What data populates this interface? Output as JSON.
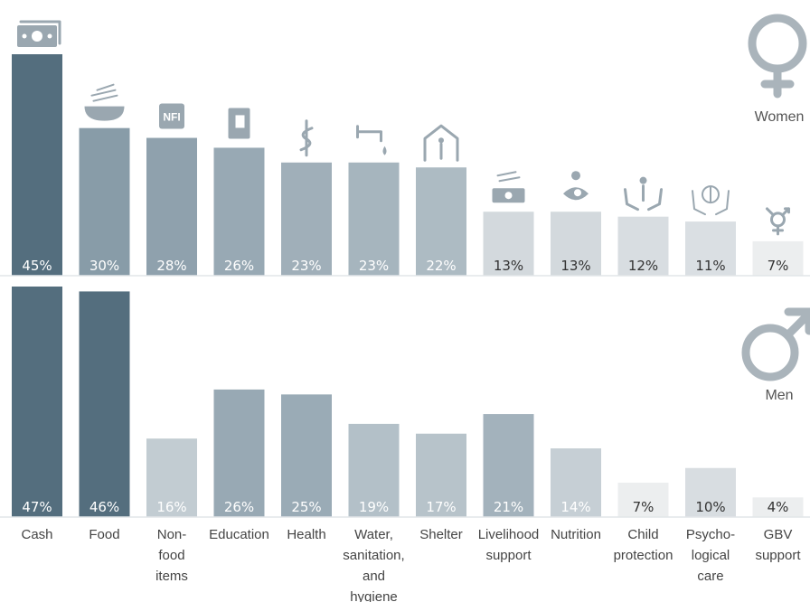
{
  "chart_data": [
    {
      "type": "bar",
      "panel": "women",
      "title": "",
      "label": "Women",
      "categories": [
        "Cash",
        "Food",
        "Non-food items",
        "Education",
        "Health",
        "Water, sanitation, and hygiene",
        "Shelter",
        "Livelihood support",
        "Nutrition",
        "Child protection",
        "Psycho-logical care",
        "GBV support"
      ],
      "values": [
        45,
        30,
        28,
        26,
        23,
        23,
        22,
        13,
        13,
        12,
        11,
        7
      ],
      "value_labels": [
        "45%",
        "30%",
        "28%",
        "26%",
        "23%",
        "23%",
        "22%",
        "13%",
        "13%",
        "12%",
        "11%",
        "7%"
      ],
      "ylim": [
        0,
        45
      ],
      "grid": false,
      "icons": [
        "cash-icon",
        "food-icon",
        "nfi-icon",
        "education-icon",
        "health-icon",
        "water-tap-icon",
        "shelter-icon",
        "livelihood-icon",
        "nutrition-icon",
        "child-protection-icon",
        "psychological-care-icon",
        "gbv-icon"
      ],
      "icon_texts": {
        "nfi": "NFI"
      }
    },
    {
      "type": "bar",
      "panel": "men",
      "title": "",
      "label": "Men",
      "categories": [
        "Cash",
        "Food",
        "Non-food items",
        "Education",
        "Health",
        "Water, sanitation, and hygiene",
        "Shelter",
        "Livelihood support",
        "Nutrition",
        "Child protection",
        "Psycho-logical care",
        "GBV support"
      ],
      "values": [
        47,
        46,
        16,
        26,
        25,
        19,
        17,
        21,
        14,
        7,
        10,
        4
      ],
      "value_labels": [
        "47%",
        "46%",
        "16%",
        "26%",
        "25%",
        "19%",
        "17%",
        "21%",
        "14%",
        "7%",
        "10%",
        "4%"
      ],
      "ylim": [
        0,
        47
      ],
      "grid": false
    }
  ],
  "axis": {
    "category_lines": [
      [
        "Cash"
      ],
      [
        "Food"
      ],
      [
        "Non-",
        "food",
        "items"
      ],
      [
        "Education"
      ],
      [
        "Health"
      ],
      [
        "Water,",
        "sanitation,",
        "and",
        "hygiene"
      ],
      [
        "Shelter"
      ],
      [
        "Livelihood",
        "support"
      ],
      [
        "Nutrition"
      ],
      [
        "Child",
        "protection"
      ],
      [
        "Psycho-",
        "logical",
        "care"
      ],
      [
        "GBV",
        "support"
      ]
    ]
  },
  "colors": {
    "darkest": "#546e7e",
    "dark": "#8096a3",
    "mid": "#95a6b1",
    "mid_light": "#a7b6bf",
    "light": "#c2ccd2",
    "lighter": "#d5dbdf",
    "lightest": "#eceeef"
  },
  "women_colors": [
    "#546e7e",
    "#889ca8",
    "#8fa1ad",
    "#98a9b4",
    "#a0afb9",
    "#a6b5be",
    "#adbbc3",
    "#d3d9dd",
    "#d3d9dd",
    "#d8dde1",
    "#dadfe3",
    "#eceeef"
  ],
  "men_colors": [
    "#546e7e",
    "#546e7e",
    "#c2ccd2",
    "#98a9b4",
    "#9aabb6",
    "#b3c0c8",
    "#b7c3ca",
    "#a3b2bc",
    "#c6cfd5",
    "#eceeef",
    "#d8dde1",
    "#eceeef"
  ],
  "legend": {
    "women_label": "Women",
    "men_label": "Men",
    "women_symbol": "female-symbol-icon",
    "men_symbol": "male-symbol-icon"
  }
}
